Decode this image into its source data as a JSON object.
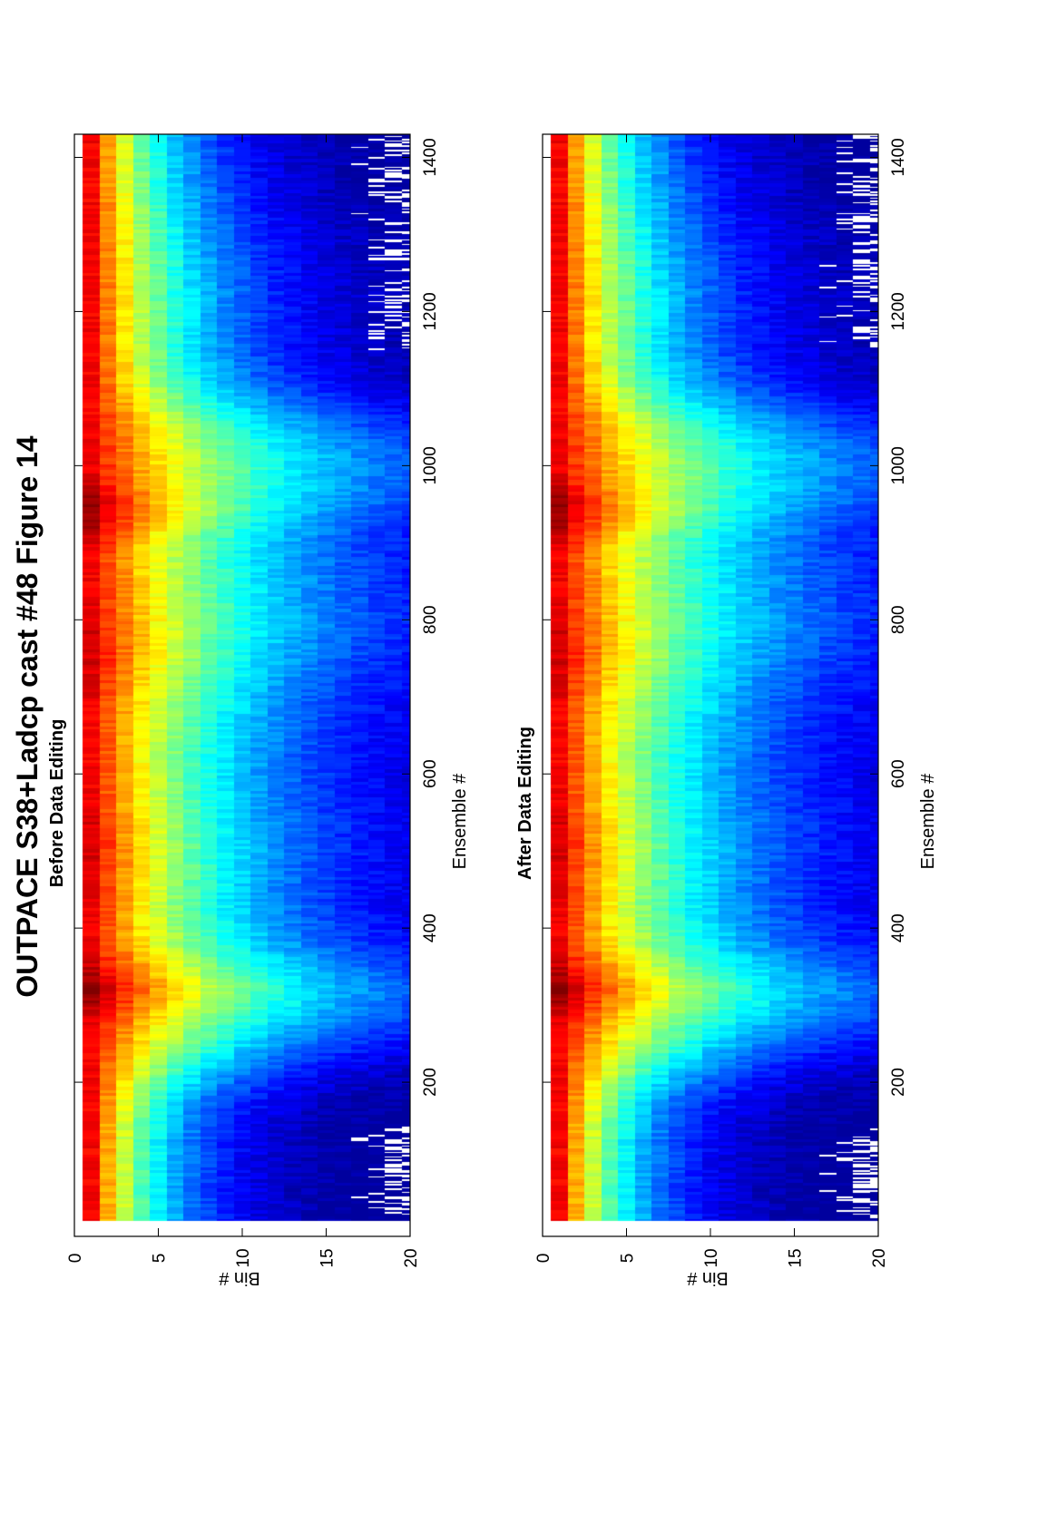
{
  "figure": {
    "title": "OUTPACE S38+Ladcp cast #48  Figure 14"
  },
  "chart_data": [
    {
      "type": "heatmap",
      "title": "Before Data Editing",
      "xlabel": "Ensemble #",
      "ylabel": "Bin #",
      "xlim": [
        0,
        1430
      ],
      "ylim": [
        0,
        20
      ],
      "xticks": [
        200,
        400,
        600,
        800,
        1000,
        1200,
        1400
      ],
      "yticks": [
        0,
        5,
        10,
        15,
        20
      ],
      "bins": [
        1,
        20
      ],
      "colormap": "jet",
      "edited": false,
      "orientation": "rotated 90 degrees counter-clockwise",
      "intensity_peaks": [
        {
          "ensemble": 320,
          "description": "high near-surface return"
        },
        {
          "ensemble": 940,
          "description": "high near-surface return"
        }
      ],
      "gap_ranges": [
        [
          20,
          140
        ],
        [
          1150,
          1430
        ]
      ]
    },
    {
      "type": "heatmap",
      "title": "After Data Editing",
      "xlabel": "Ensemble #",
      "ylabel": "Bin #",
      "xlim": [
        0,
        1430
      ],
      "ylim": [
        0,
        20
      ],
      "xticks": [
        200,
        400,
        600,
        800,
        1000,
        1200,
        1400
      ],
      "yticks": [
        0,
        5,
        10,
        15,
        20
      ],
      "bins": [
        1,
        20
      ],
      "colormap": "jet",
      "edited": true,
      "orientation": "rotated 90 degrees counter-clockwise",
      "intensity_peaks": [
        {
          "ensemble": 320,
          "description": "high near-surface return"
        },
        {
          "ensemble": 940,
          "description": "high near-surface return"
        }
      ],
      "gap_ranges": [
        [
          20,
          140
        ],
        [
          1150,
          1430
        ]
      ]
    }
  ],
  "colors": {
    "background": "#ffffff",
    "axis": "#000000",
    "gap": "#ffffff"
  }
}
